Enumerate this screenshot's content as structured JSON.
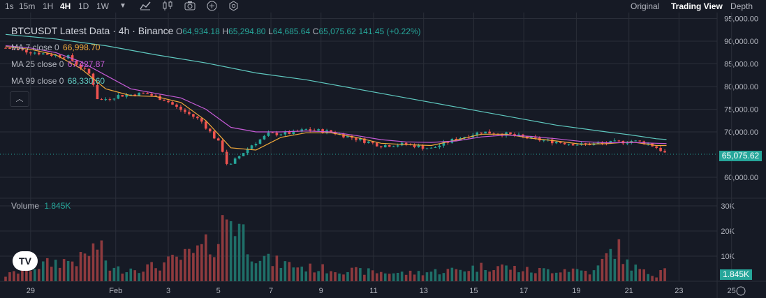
{
  "toolbar": {
    "timeframes": [
      "1s",
      "15m",
      "1H",
      "4H",
      "1D",
      "1W"
    ],
    "active_timeframe": "4H",
    "icons": [
      "chevron-down-icon",
      "indicator-icon",
      "candle-type-icon",
      "camera-icon",
      "add-icon",
      "settings-icon"
    ],
    "views": [
      "Original",
      "Trading View",
      "Depth"
    ],
    "active_view": "Trading View"
  },
  "legend": {
    "symbol": "BTCUSDT Latest Data · 4h · Binance",
    "open_label": "O",
    "open": "64,934.18",
    "high_label": "H",
    "high": "65,294.80",
    "low_label": "L",
    "low": "64,685.64",
    "close_label": "C",
    "close": "65,075.62",
    "change": "141.45 (+0.22%)"
  },
  "ma": [
    {
      "label": "MA 7 close 0",
      "value": "66,998.70",
      "color": "#f0a93b"
    },
    {
      "label": "MA 25 close 0",
      "value": "67,427.87",
      "color": "#c55bd6"
    },
    {
      "label": "MA 99 close 0",
      "value": "68,330.60",
      "color": "#5fc9c0"
    }
  ],
  "volume_legend": {
    "label": "Volume",
    "value": "1.845K"
  },
  "last_price_tag": "65,075.62",
  "last_volume_tag": "1.845K",
  "collapse_icon": "chevron-up-icon",
  "logo_text": "TV",
  "colors": {
    "up": "#26a69a",
    "down": "#ef5350",
    "background": "#161a25",
    "grid": "#2a2e39",
    "text": "#b2b5be"
  },
  "chart_data": {
    "type": "candlestick",
    "title": "BTCUSDT Latest Data · 4h · Binance",
    "y_axis": {
      "ticks": [
        "95,000.00",
        "90,000.00",
        "85,000.00",
        "80,000.00",
        "75,000.00",
        "70,000.00",
        "60,000.00"
      ],
      "range": [
        56000,
        96000
      ]
    },
    "volume_axis": {
      "ticks": [
        "30K",
        "20K",
        "10K"
      ],
      "range": [
        0,
        30000
      ]
    },
    "x_axis": {
      "ticks": [
        "29",
        "Feb",
        "3",
        "5",
        "7",
        "9",
        "11",
        "13",
        "15",
        "17",
        "19",
        "21",
        "23",
        "25"
      ]
    },
    "x_range_days": [
      0,
      28.2
    ],
    "last_price": 65075.62,
    "close_anchors": [
      [
        0,
        88500
      ],
      [
        1.2,
        87500
      ],
      [
        2.5,
        86500
      ],
      [
        3.4,
        82500
      ],
      [
        3.7,
        76800
      ],
      [
        4.5,
        78000
      ],
      [
        5.6,
        78500
      ],
      [
        6.4,
        77000
      ],
      [
        6.8,
        75500
      ],
      [
        7.8,
        72500
      ],
      [
        8.6,
        67000
      ],
      [
        8.9,
        62000
      ],
      [
        9.2,
        64000
      ],
      [
        9.8,
        67000
      ],
      [
        10.5,
        69500
      ],
      [
        11.5,
        69800
      ],
      [
        12,
        70500
      ],
      [
        13,
        70000
      ],
      [
        14,
        68500
      ],
      [
        15,
        67000
      ],
      [
        16,
        67300
      ],
      [
        17,
        66300
      ],
      [
        18,
        68500
      ],
      [
        19,
        70000
      ],
      [
        20,
        69500
      ],
      [
        21,
        68500
      ],
      [
        22,
        67800
      ],
      [
        23,
        67200
      ],
      [
        24,
        67500
      ],
      [
        25,
        68000
      ],
      [
        25.6,
        67600
      ],
      [
        26.1,
        66300
      ],
      [
        26.4,
        65075
      ]
    ],
    "ma_lines": [
      {
        "name": "MA 7",
        "points": [
          [
            0,
            88800
          ],
          [
            1,
            88200
          ],
          [
            2,
            87000
          ],
          [
            3,
            84000
          ],
          [
            4,
            79500
          ],
          [
            5,
            78000
          ],
          [
            6,
            77800
          ],
          [
            7,
            76500
          ],
          [
            8,
            72500
          ],
          [
            9,
            66500
          ],
          [
            10,
            66000
          ],
          [
            11,
            68800
          ],
          [
            12,
            69800
          ],
          [
            13,
            69800
          ],
          [
            14,
            68800
          ],
          [
            15,
            67500
          ],
          [
            16,
            67200
          ],
          [
            17,
            67000
          ],
          [
            18,
            68200
          ],
          [
            19,
            69500
          ],
          [
            20,
            69500
          ],
          [
            21,
            68600
          ],
          [
            22,
            68000
          ],
          [
            23,
            67300
          ],
          [
            24,
            67400
          ],
          [
            25,
            67800
          ],
          [
            26,
            67000
          ],
          [
            26.4,
            66998
          ]
        ]
      },
      {
        "name": "MA 25",
        "points": [
          [
            0,
            89000
          ],
          [
            1,
            88500
          ],
          [
            2,
            87500
          ],
          [
            3,
            85500
          ],
          [
            4,
            82500
          ],
          [
            5,
            79500
          ],
          [
            6,
            78500
          ],
          [
            7,
            77500
          ],
          [
            8,
            75000
          ],
          [
            9,
            71000
          ],
          [
            10,
            70000
          ],
          [
            11,
            70000
          ],
          [
            12,
            70200
          ],
          [
            13,
            70000
          ],
          [
            14,
            69200
          ],
          [
            15,
            68300
          ],
          [
            16,
            67800
          ],
          [
            17,
            67700
          ],
          [
            18,
            68000
          ],
          [
            19,
            68900
          ],
          [
            20,
            69300
          ],
          [
            21,
            69000
          ],
          [
            22,
            68500
          ],
          [
            23,
            67900
          ],
          [
            24,
            67600
          ],
          [
            25,
            67700
          ],
          [
            26,
            67500
          ],
          [
            26.4,
            67427
          ]
        ]
      },
      {
        "name": "MA 99",
        "points": [
          [
            0,
            91500
          ],
          [
            2,
            90500
          ],
          [
            4,
            89000
          ],
          [
            6,
            87000
          ],
          [
            8,
            85200
          ],
          [
            10,
            83000
          ],
          [
            12,
            81500
          ],
          [
            14,
            79500
          ],
          [
            16,
            77500
          ],
          [
            18,
            75500
          ],
          [
            20,
            73500
          ],
          [
            22,
            71500
          ],
          [
            24,
            70000
          ],
          [
            25,
            69300
          ],
          [
            26,
            68500
          ],
          [
            26.4,
            68330
          ]
        ]
      }
    ],
    "volume_anchors": [
      [
        0,
        2500
      ],
      [
        1,
        6000
      ],
      [
        2,
        8500
      ],
      [
        3,
        9500
      ],
      [
        3.7,
        16000
      ],
      [
        4.2,
        5000
      ],
      [
        6,
        6500
      ],
      [
        7.5,
        12000
      ],
      [
        8.5,
        18000
      ],
      [
        8.8,
        30000
      ],
      [
        9.3,
        26000
      ],
      [
        9.8,
        14000
      ],
      [
        10.5,
        9000
      ],
      [
        12,
        6000
      ],
      [
        14,
        4500
      ],
      [
        16,
        3500
      ],
      [
        18,
        5000
      ],
      [
        19.5,
        7000
      ],
      [
        21,
        4500
      ],
      [
        22.5,
        5500
      ],
      [
        23.5,
        4000
      ],
      [
        24.4,
        16000
      ],
      [
        24.8,
        8000
      ],
      [
        25.5,
        4000
      ],
      [
        26.1,
        2500
      ],
      [
        26.3,
        11000
      ],
      [
        26.4,
        1845
      ]
    ]
  }
}
